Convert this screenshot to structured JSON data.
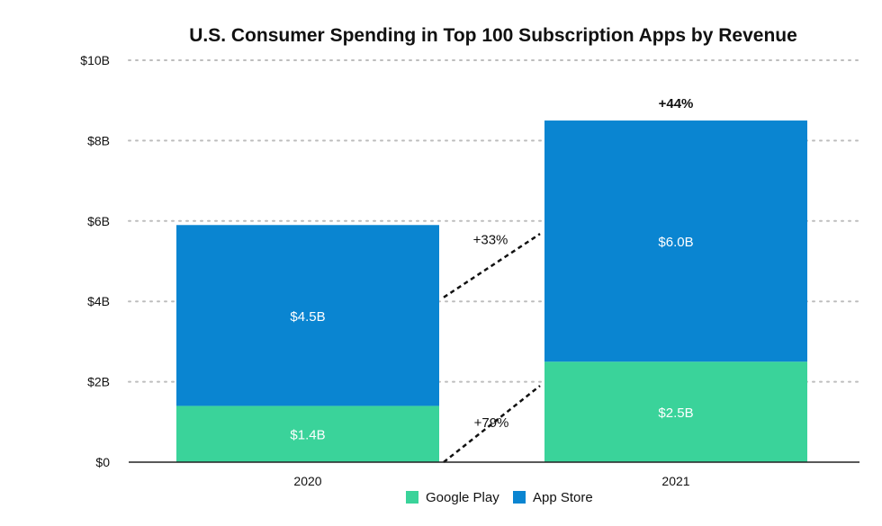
{
  "chart_data": {
    "type": "bar",
    "stacked": true,
    "title": "U.S. Consumer Spending in Top 100 Subscription Apps by Revenue",
    "xlabel": "",
    "ylabel": "",
    "ylim": [
      0,
      10
    ],
    "y_ticks": [
      0,
      2,
      4,
      6,
      8,
      10
    ],
    "y_tick_labels": [
      "$0",
      "$2B",
      "$4B",
      "$6B",
      "$8B",
      "$10B"
    ],
    "grid": "horizontal dotted",
    "categories": [
      "2020",
      "2021"
    ],
    "series": [
      {
        "name": "Google Play",
        "color": "#3ad39a",
        "values": [
          1.4,
          2.5
        ],
        "labels": [
          "$1.4B",
          "$2.5B"
        ]
      },
      {
        "name": "App Store",
        "color": "#0a85d1",
        "values": [
          4.5,
          6.0
        ],
        "labels": [
          "$4.5B",
          "$6.0B"
        ]
      }
    ],
    "annotations": {
      "total_growth": "+44%",
      "app_store_growth": "+33%",
      "google_play_growth": "+79%"
    },
    "legend": {
      "placement": "bottom-center",
      "entries": [
        "Google Play",
        "App Store"
      ]
    }
  }
}
